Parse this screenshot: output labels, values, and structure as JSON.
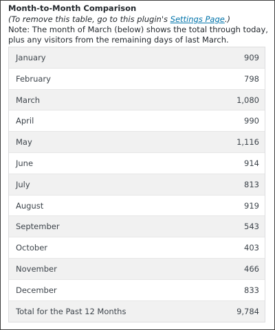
{
  "header": {
    "title": "Month-to-Month Comparison",
    "subtitle_prefix": "(To remove this table, go to this plugin's ",
    "settings_link": "Settings Page",
    "subtitle_suffix": ".)",
    "note": "Note: The month of March (below) shows the total through today, plus any visitors from the remaining days of last March."
  },
  "table": {
    "rows": [
      {
        "label": "January",
        "value": "909"
      },
      {
        "label": "February",
        "value": "798"
      },
      {
        "label": "March",
        "value": "1,080"
      },
      {
        "label": "April",
        "value": "990"
      },
      {
        "label": "May",
        "value": "1,116"
      },
      {
        "label": "June",
        "value": "914"
      },
      {
        "label": "July",
        "value": "813"
      },
      {
        "label": "August",
        "value": "919"
      },
      {
        "label": "September",
        "value": "543"
      },
      {
        "label": "October",
        "value": "403"
      },
      {
        "label": "November",
        "value": "466"
      },
      {
        "label": "December",
        "value": "833"
      }
    ],
    "total": {
      "label": "Total for the Past 12 Months",
      "value": "9,784"
    }
  }
}
